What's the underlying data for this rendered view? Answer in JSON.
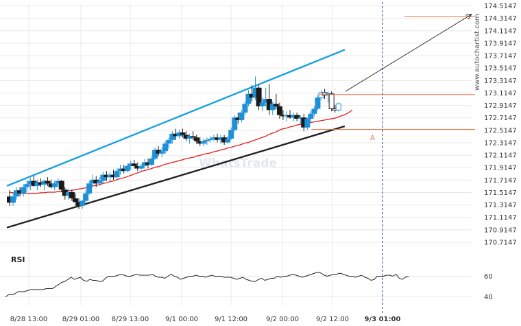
{
  "chart_data": {
    "type": "candlestick",
    "y_ticks": [
      "174.5147",
      "174.3147",
      "174.1147",
      "173.9147",
      "173.7147",
      "173.5147",
      "173.3147",
      "173.1147",
      "172.9147",
      "172.7147",
      "172.5147",
      "172.3147",
      "172.1147",
      "171.9147",
      "171.7147",
      "171.5147",
      "171.3147",
      "171.1147",
      "170.9147",
      "170.7147"
    ],
    "ylim": [
      170.6147,
      174.5547
    ],
    "x_ticks": [
      "8/28 13:00",
      "8/29 01:00",
      "8/29 13:00",
      "9/1 00:00",
      "9/1 12:00",
      "9/2 00:00",
      "9/2 12:00",
      "9/3 01:00"
    ],
    "highlight_x": "9/3 01:00",
    "rsi": {
      "label": "RSI",
      "ticks": [
        "60",
        "40"
      ],
      "ylim": [
        35,
        75
      ],
      "values": [
        40,
        42,
        42,
        43,
        45,
        45,
        45,
        46,
        47,
        47,
        47,
        47,
        47,
        48,
        48,
        48,
        50,
        52,
        54,
        55,
        57,
        59,
        57,
        58,
        59,
        56,
        55,
        57,
        56,
        56,
        55,
        55,
        58,
        60,
        60,
        60,
        61,
        62,
        61,
        60,
        60,
        61,
        62,
        61,
        61,
        61,
        61,
        62,
        60,
        59,
        59,
        58,
        60,
        62,
        60,
        59,
        57,
        58,
        59,
        60,
        60,
        61,
        60,
        60,
        59,
        60,
        61,
        60,
        60,
        60,
        59,
        59,
        59,
        58,
        57,
        58,
        59,
        57,
        56,
        55,
        55,
        57,
        58,
        56,
        57,
        58,
        58,
        60,
        59,
        60,
        60,
        61,
        62,
        61,
        60,
        59,
        60,
        61,
        62,
        63,
        64,
        63,
        61,
        60,
        61,
        62,
        62,
        63,
        62,
        61,
        60,
        60,
        59,
        60,
        61,
        59,
        58,
        56,
        57,
        60,
        60,
        60,
        61,
        61,
        60,
        62,
        58,
        57,
        59,
        60
      ]
    },
    "ema": [
      171.52,
      171.51,
      171.5,
      171.5,
      171.5,
      171.5,
      171.5,
      171.5,
      171.5,
      171.51,
      171.51,
      171.52,
      171.52,
      171.52,
      171.53,
      171.53,
      171.54,
      171.54,
      171.55,
      171.56,
      171.57,
      171.58,
      171.59,
      171.6,
      171.62,
      171.63,
      171.64,
      171.66,
      171.67,
      171.69,
      171.7,
      171.72,
      171.74,
      171.75,
      171.77,
      171.79,
      171.81,
      171.83,
      171.85,
      171.87,
      171.88,
      171.9,
      171.92,
      171.93,
      171.95,
      171.97,
      171.98,
      172.0,
      172.01,
      172.03,
      172.04,
      172.06,
      172.07,
      172.08,
      172.1,
      172.11,
      172.13,
      172.14,
      172.15,
      172.17,
      172.18,
      172.2,
      172.21,
      172.23,
      172.24,
      172.26,
      172.27,
      172.29,
      172.31,
      172.32,
      172.34,
      172.36,
      172.38,
      172.4,
      172.42,
      172.45,
      172.47,
      172.49,
      172.52,
      172.54,
      172.55,
      172.57,
      172.58,
      172.6,
      172.61,
      172.62,
      172.63,
      172.64,
      172.65,
      172.66,
      172.67,
      172.68,
      172.69,
      172.7,
      172.71,
      172.73,
      172.75,
      172.77,
      172.8,
      172.84
    ],
    "candles": [
      [
        171.45,
        171.55,
        171.3,
        171.35
      ],
      [
        171.35,
        171.5,
        171.3,
        171.45
      ],
      [
        171.45,
        171.6,
        171.4,
        171.55
      ],
      [
        171.55,
        171.6,
        171.45,
        171.5
      ],
      [
        171.5,
        171.65,
        171.45,
        171.6
      ],
      [
        171.6,
        171.7,
        171.52,
        171.65
      ],
      [
        171.65,
        171.75,
        171.55,
        171.7
      ],
      [
        171.7,
        171.78,
        171.6,
        171.62
      ],
      [
        171.62,
        171.72,
        171.55,
        171.68
      ],
      [
        171.68,
        171.74,
        171.6,
        171.64
      ],
      [
        171.64,
        171.72,
        171.55,
        171.7
      ],
      [
        171.7,
        171.76,
        171.62,
        171.66
      ],
      [
        171.66,
        171.72,
        171.58,
        171.6
      ],
      [
        171.6,
        171.7,
        171.55,
        171.66
      ],
      [
        171.66,
        171.74,
        171.6,
        171.7
      ],
      [
        171.7,
        171.72,
        171.52,
        171.56
      ],
      [
        171.56,
        171.6,
        171.4,
        171.46
      ],
      [
        171.46,
        171.58,
        171.4,
        171.52
      ],
      [
        171.52,
        171.56,
        171.38,
        171.42
      ],
      [
        171.42,
        171.5,
        171.3,
        171.36
      ],
      [
        171.36,
        171.42,
        171.25,
        171.3
      ],
      [
        171.3,
        171.4,
        171.25,
        171.38
      ],
      [
        171.38,
        171.55,
        171.35,
        171.5
      ],
      [
        171.5,
        171.7,
        171.48,
        171.66
      ],
      [
        171.66,
        171.8,
        171.6,
        171.72
      ],
      [
        171.72,
        171.78,
        171.6,
        171.66
      ],
      [
        171.66,
        171.76,
        171.62,
        171.7
      ],
      [
        171.7,
        171.85,
        171.66,
        171.8
      ],
      [
        171.8,
        171.86,
        171.7,
        171.76
      ],
      [
        171.76,
        171.84,
        171.68,
        171.8
      ],
      [
        171.8,
        171.88,
        171.72,
        171.76
      ],
      [
        171.76,
        171.9,
        171.74,
        171.86
      ],
      [
        171.86,
        171.96,
        171.8,
        171.9
      ],
      [
        171.9,
        171.96,
        171.82,
        171.86
      ],
      [
        171.86,
        171.98,
        171.84,
        171.94
      ],
      [
        171.94,
        172.02,
        171.88,
        171.98
      ],
      [
        171.98,
        172.04,
        171.9,
        171.94
      ],
      [
        171.94,
        172.0,
        171.86,
        171.9
      ],
      [
        171.9,
        171.98,
        171.84,
        171.94
      ],
      [
        171.94,
        172.05,
        171.9,
        172.0
      ],
      [
        172.0,
        172.06,
        171.9,
        171.96
      ],
      [
        171.96,
        172.1,
        171.94,
        172.06
      ],
      [
        172.06,
        172.24,
        172.04,
        172.2
      ],
      [
        172.2,
        172.26,
        172.1,
        172.14
      ],
      [
        172.14,
        172.24,
        172.08,
        172.18
      ],
      [
        172.18,
        172.34,
        172.14,
        172.3
      ],
      [
        172.3,
        172.4,
        172.22,
        172.36
      ],
      [
        172.36,
        172.5,
        172.3,
        172.46
      ],
      [
        172.46,
        172.54,
        172.36,
        172.42
      ],
      [
        172.42,
        172.52,
        172.38,
        172.48
      ],
      [
        172.48,
        172.54,
        172.4,
        172.44
      ],
      [
        172.44,
        172.5,
        172.34,
        172.38
      ],
      [
        172.38,
        172.46,
        172.3,
        172.42
      ],
      [
        172.42,
        172.5,
        172.36,
        172.4
      ],
      [
        172.4,
        172.44,
        172.3,
        172.34
      ],
      [
        172.34,
        172.4,
        172.26,
        172.3
      ],
      [
        172.3,
        172.38,
        172.26,
        172.34
      ],
      [
        172.34,
        172.4,
        172.28,
        172.36
      ],
      [
        172.36,
        172.42,
        172.32,
        172.38
      ],
      [
        172.38,
        172.44,
        172.34,
        172.4
      ],
      [
        172.4,
        172.46,
        172.32,
        172.36
      ],
      [
        172.36,
        172.44,
        172.3,
        172.4
      ],
      [
        172.4,
        172.44,
        172.28,
        172.32
      ],
      [
        172.32,
        172.42,
        172.3,
        172.38
      ],
      [
        172.38,
        172.56,
        172.36,
        172.52
      ],
      [
        172.52,
        172.76,
        172.5,
        172.72
      ],
      [
        172.72,
        172.8,
        172.62,
        172.68
      ],
      [
        172.68,
        172.84,
        172.64,
        172.8
      ],
      [
        172.8,
        172.98,
        172.76,
        172.94
      ],
      [
        172.94,
        173.16,
        172.9,
        173.1
      ],
      [
        173.1,
        173.24,
        172.98,
        173.04
      ],
      [
        173.04,
        173.38,
        173.0,
        173.2
      ],
      [
        173.2,
        173.24,
        172.84,
        172.9
      ],
      [
        172.9,
        173.04,
        172.82,
        172.96
      ],
      [
        172.96,
        173.2,
        172.9,
        173.02
      ],
      [
        173.02,
        173.26,
        172.76,
        172.84
      ],
      [
        172.84,
        172.98,
        172.76,
        172.94
      ],
      [
        172.94,
        173.1,
        172.86,
        172.9
      ],
      [
        172.9,
        172.96,
        172.7,
        172.76
      ],
      [
        172.76,
        172.84,
        172.68,
        172.74
      ],
      [
        172.74,
        172.82,
        172.66,
        172.76
      ],
      [
        172.76,
        172.84,
        172.7,
        172.72
      ],
      [
        172.72,
        172.8,
        172.66,
        172.76
      ],
      [
        172.76,
        172.8,
        172.66,
        172.7
      ],
      [
        172.7,
        172.76,
        172.62,
        172.72
      ],
      [
        172.72,
        172.78,
        172.5,
        172.56
      ],
      [
        172.56,
        172.72,
        172.52,
        172.7
      ],
      [
        172.7,
        172.82,
        172.64,
        172.78
      ],
      [
        172.78,
        172.9,
        172.74,
        172.86
      ],
      [
        172.86,
        173.08,
        172.84,
        173.04
      ],
      [
        173.04,
        173.16,
        173.0,
        173.12
      ],
      [
        173.12,
        173.18,
        173.02,
        173.08
      ],
      [
        173.08,
        173.14,
        172.96,
        173.1
      ],
      [
        173.1,
        173.14,
        172.82,
        172.86
      ],
      [
        172.86,
        172.92,
        172.8,
        172.84
      ],
      [
        172.84,
        172.96,
        172.82,
        172.94
      ]
    ],
    "upper_channel": [
      [
        0,
        171.62
      ],
      [
        97,
        173.81
      ]
    ],
    "lower_channel": [
      [
        0,
        170.95
      ],
      [
        97,
        172.58
      ]
    ],
    "resistance": 173.09,
    "support": 172.53,
    "target": 174.34,
    "arrow_from": [
      97,
      173.14
    ],
    "arrow_to": [
      119,
      174.38
    ],
    "point_label": "A",
    "watermark": "WhatsTrade",
    "brand": "www.autochartist.com",
    "colors": {
      "up": "#1e90d8",
      "down": "#1a1a1a",
      "upper": "#1aa1e0",
      "lower": "#222222",
      "ema": "#e31a1a",
      "level": "#f07040",
      "rsi": "#222222",
      "grid": "#e8e8e8"
    }
  }
}
